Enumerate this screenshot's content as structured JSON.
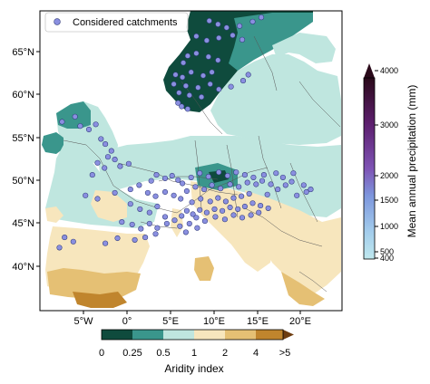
{
  "map": {
    "lat_ticks": [
      "65°N",
      "60°N",
      "55°N",
      "50°N",
      "45°N",
      "40°N"
    ],
    "lon_ticks": [
      "5°W",
      "0°",
      "5°E",
      "10°E",
      "15°E",
      "20°E"
    ],
    "legend_label": "Considered catchments",
    "marker_color": "#8a8fe0"
  },
  "aridity_colorbar": {
    "label": "Aridity index",
    "ticks": [
      "0",
      "0.25",
      "0.5",
      "1",
      "2",
      "4",
      ">5"
    ],
    "colors": [
      "#0f4b3d",
      "#3a968c",
      "#bfe6df",
      "#f7e6bd",
      "#e5c074",
      "#c0852d"
    ]
  },
  "precip_colorbar": {
    "label": "Mean annual precipitation (mm)",
    "ticks": [
      "4000",
      "3000",
      "2000",
      "1500",
      "1000",
      "500",
      "400"
    ],
    "colors": [
      "#bfe8ee",
      "#7d96dd",
      "#7e53b4",
      "#5c1e6d",
      "#2a0a1a"
    ]
  },
  "chart_data": {
    "type": "scatter",
    "series": [
      {
        "name": "Considered catchments",
        "points": [
          [
            9.5,
            68.6
          ],
          [
            10.5,
            68.2
          ],
          [
            11.5,
            67.8
          ],
          [
            13.0,
            68.0
          ],
          [
            14.5,
            68.5
          ],
          [
            15.5,
            69.0
          ],
          [
            8.0,
            66.8
          ],
          [
            9.2,
            66.3
          ],
          [
            10.6,
            66.6
          ],
          [
            12.2,
            66.9
          ],
          [
            13.3,
            66.4
          ],
          [
            7.0,
            64.5
          ],
          [
            8.0,
            64.8
          ],
          [
            9.4,
            64.4
          ],
          [
            10.5,
            64.0
          ],
          [
            6.5,
            63.7
          ],
          [
            5.6,
            62.3
          ],
          [
            6.4,
            62.0
          ],
          [
            7.4,
            62.6
          ],
          [
            8.8,
            62.2
          ],
          [
            9.8,
            62.6
          ],
          [
            5.4,
            61.2
          ],
          [
            6.8,
            61.0
          ],
          [
            8.2,
            60.8
          ],
          [
            9.6,
            61.2
          ],
          [
            6.0,
            60.2
          ],
          [
            7.2,
            59.9
          ],
          [
            8.6,
            59.7
          ],
          [
            10.6,
            60.6
          ],
          [
            12.0,
            60.9
          ],
          [
            13.4,
            61.6
          ],
          [
            14.0,
            62.3
          ],
          [
            5.9,
            59.0
          ],
          [
            6.3,
            58.6
          ],
          [
            7.0,
            58.3
          ],
          [
            -7.5,
            56.8
          ],
          [
            -6.0,
            57.4
          ],
          [
            -5.4,
            56.3
          ],
          [
            -4.4,
            55.9
          ],
          [
            -3.6,
            56.5
          ],
          [
            -3.0,
            54.8
          ],
          [
            -2.5,
            54.2
          ],
          [
            -1.8,
            53.4
          ],
          [
            -2.2,
            52.7
          ],
          [
            -3.4,
            52.0
          ],
          [
            -1.4,
            52.4
          ],
          [
            -0.8,
            51.6
          ],
          [
            0.2,
            51.9
          ],
          [
            -2.6,
            51.4
          ],
          [
            -4.0,
            50.6
          ],
          [
            -4.8,
            48.2
          ],
          [
            -3.4,
            47.8
          ],
          [
            -1.4,
            48.5
          ],
          [
            0.4,
            48.9
          ],
          [
            1.4,
            49.4
          ],
          [
            2.8,
            49.9
          ],
          [
            3.4,
            50.6
          ],
          [
            4.4,
            50.2
          ],
          [
            5.2,
            50.5
          ],
          [
            5.9,
            50.0
          ],
          [
            6.4,
            49.6
          ],
          [
            2.4,
            48.5
          ],
          [
            3.3,
            48.1
          ],
          [
            4.4,
            48.6
          ],
          [
            5.4,
            48.2
          ],
          [
            6.2,
            47.8
          ],
          [
            0.4,
            47.2
          ],
          [
            1.5,
            46.6
          ],
          [
            2.6,
            46.2
          ],
          [
            3.5,
            46.9
          ],
          [
            4.4,
            45.7
          ],
          [
            -0.6,
            45.1
          ],
          [
            0.6,
            44.8
          ],
          [
            1.6,
            44.3
          ],
          [
            2.6,
            44.9
          ],
          [
            3.5,
            44.4
          ],
          [
            4.6,
            44.9
          ],
          [
            5.5,
            45.3
          ],
          [
            6.3,
            45.8
          ],
          [
            6.9,
            46.4
          ],
          [
            7.6,
            46.0
          ],
          [
            8.4,
            46.5
          ],
          [
            9.2,
            46.2
          ],
          [
            10.1,
            46.6
          ],
          [
            11.0,
            46.4
          ],
          [
            11.9,
            46.8
          ],
          [
            12.8,
            46.6
          ],
          [
            13.6,
            46.9
          ],
          [
            14.5,
            47.3
          ],
          [
            15.4,
            47.0
          ],
          [
            16.3,
            46.7
          ],
          [
            7.5,
            47.4
          ],
          [
            8.5,
            47.8
          ],
          [
            9.6,
            47.5
          ],
          [
            10.5,
            47.9
          ],
          [
            11.4,
            47.5
          ],
          [
            12.3,
            47.9
          ],
          [
            13.2,
            48.1
          ],
          [
            14.1,
            48.4
          ],
          [
            6.9,
            48.7
          ],
          [
            7.9,
            49.2
          ],
          [
            8.9,
            48.9
          ],
          [
            9.8,
            49.4
          ],
          [
            10.8,
            49.0
          ],
          [
            11.9,
            49.5
          ],
          [
            12.9,
            49.2
          ],
          [
            13.9,
            49.7
          ],
          [
            14.9,
            49.5
          ],
          [
            7.4,
            50.3
          ],
          [
            8.4,
            50.8
          ],
          [
            9.4,
            50.4
          ],
          [
            10.6,
            50.9
          ],
          [
            11.6,
            50.5
          ],
          [
            12.6,
            50.9
          ],
          [
            13.6,
            50.6
          ],
          [
            14.6,
            50.3
          ],
          [
            15.6,
            49.9
          ],
          [
            16.6,
            49.5
          ],
          [
            17.4,
            48.9
          ],
          [
            16.2,
            48.3
          ],
          [
            18.3,
            49.4
          ],
          [
            19.0,
            49.8
          ],
          [
            20.4,
            49.4
          ],
          [
            21.2,
            48.9
          ],
          [
            8.0,
            45.6
          ],
          [
            9.0,
            45.2
          ],
          [
            10.2,
            45.7
          ],
          [
            11.3,
            45.4
          ],
          [
            12.3,
            45.9
          ],
          [
            13.3,
            45.6
          ],
          [
            14.3,
            45.9
          ],
          [
            15.2,
            46.2
          ],
          [
            7.2,
            44.9
          ],
          [
            6.1,
            44.6
          ],
          [
            8.1,
            44.4
          ],
          [
            2.1,
            43.3
          ],
          [
            0.9,
            43.0
          ],
          [
            -1.1,
            43.2
          ],
          [
            3.3,
            43.7
          ],
          [
            -7.2,
            43.3
          ],
          [
            -6.2,
            42.8
          ],
          [
            -2.5,
            42.6
          ],
          [
            6.8,
            43.9
          ],
          [
            -7.8,
            42.1
          ],
          [
            18.0,
            50.3
          ],
          [
            17.2,
            50.8
          ],
          [
            19.2,
            50.8
          ],
          [
            15.8,
            50.6
          ],
          [
            20.7,
            48.6
          ],
          [
            19.6,
            48.2
          ]
        ]
      }
    ]
  }
}
